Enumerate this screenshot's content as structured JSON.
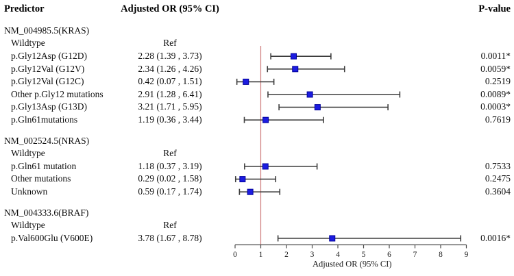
{
  "header": {
    "predictor": "Predictor",
    "adjusted_or": "Adjusted OR (95% CI)",
    "p_value": "P-value"
  },
  "colors": {
    "marker_fill": "#1c1ce0",
    "marker_stroke": "#000099",
    "ci_line": "#3d3d3d",
    "ref_line": "#cf7d7d",
    "axis_line": "#4a4a4a",
    "text": "#0d0d0d"
  },
  "chart_data": {
    "type": "forest",
    "xlabel": "Adjusted OR (95% CI)",
    "xlim": [
      0,
      9
    ],
    "xticks": [
      0,
      1,
      2,
      3,
      4,
      5,
      6,
      7,
      8,
      9
    ],
    "ref_line_x": 1,
    "groups": [
      {
        "label": "NM_004985.5(KRAS)",
        "rows": [
          {
            "label": "Wildtype",
            "or_text": "Ref",
            "p": ""
          },
          {
            "label": "p.Gly12Asp (G12D)",
            "or_text": "2.28 (1.39 , 3.73)",
            "est": 2.28,
            "lo": 1.39,
            "hi": 3.73,
            "p": "0.0011*"
          },
          {
            "label": "p.Gly12Val (G12V)",
            "or_text": "2.34 (1.26 , 4.26)",
            "est": 2.34,
            "lo": 1.26,
            "hi": 4.26,
            "p": "0.0059*"
          },
          {
            "label": "p.Gly12Val (G12C)",
            "or_text": "0.42 (0.07 , 1.51)",
            "est": 0.42,
            "lo": 0.07,
            "hi": 1.51,
            "p": "0.2519"
          },
          {
            "label": "Other p.Gly12 mutations",
            "or_text": "2.91 (1.28 , 6.41)",
            "est": 2.91,
            "lo": 1.28,
            "hi": 6.41,
            "p": "0.0089*"
          },
          {
            "label": "p.Gly13Asp (G13D)",
            "or_text": "3.21 (1.71 , 5.95)",
            "est": 3.21,
            "lo": 1.71,
            "hi": 5.95,
            "p": "0.0003*"
          },
          {
            "label": "p.Gln61mutations",
            "or_text": "1.19 (0.36 , 3.44)",
            "est": 1.19,
            "lo": 0.36,
            "hi": 3.44,
            "p": "0.7619"
          }
        ]
      },
      {
        "label": "NM_002524.5(NRAS)",
        "rows": [
          {
            "label": "Wildtype",
            "or_text": "Ref",
            "p": ""
          },
          {
            "label": "p.Gln61 mutation",
            "or_text": "1.18 (0.37 , 3.19)",
            "est": 1.18,
            "lo": 0.37,
            "hi": 3.19,
            "p": "0.7533"
          },
          {
            "label": "Other mutations",
            "or_text": "0.29 (0.02 , 1.58)",
            "est": 0.29,
            "lo": 0.02,
            "hi": 1.58,
            "p": "0.2475"
          },
          {
            "label": "Unknown",
            "or_text": "0.59 (0.17 , 1.74)",
            "est": 0.59,
            "lo": 0.17,
            "hi": 1.74,
            "p": "0.3604"
          }
        ]
      },
      {
        "label": "NM_004333.6(BRAF)",
        "rows": [
          {
            "label": "Wildtype",
            "or_text": "Ref",
            "p": ""
          },
          {
            "label": "p.Val600Glu (V600E)",
            "or_text": "3.78 (1.67 , 8.78)",
            "est": 3.78,
            "lo": 1.67,
            "hi": 8.78,
            "p": "0.0016*"
          }
        ]
      }
    ]
  }
}
